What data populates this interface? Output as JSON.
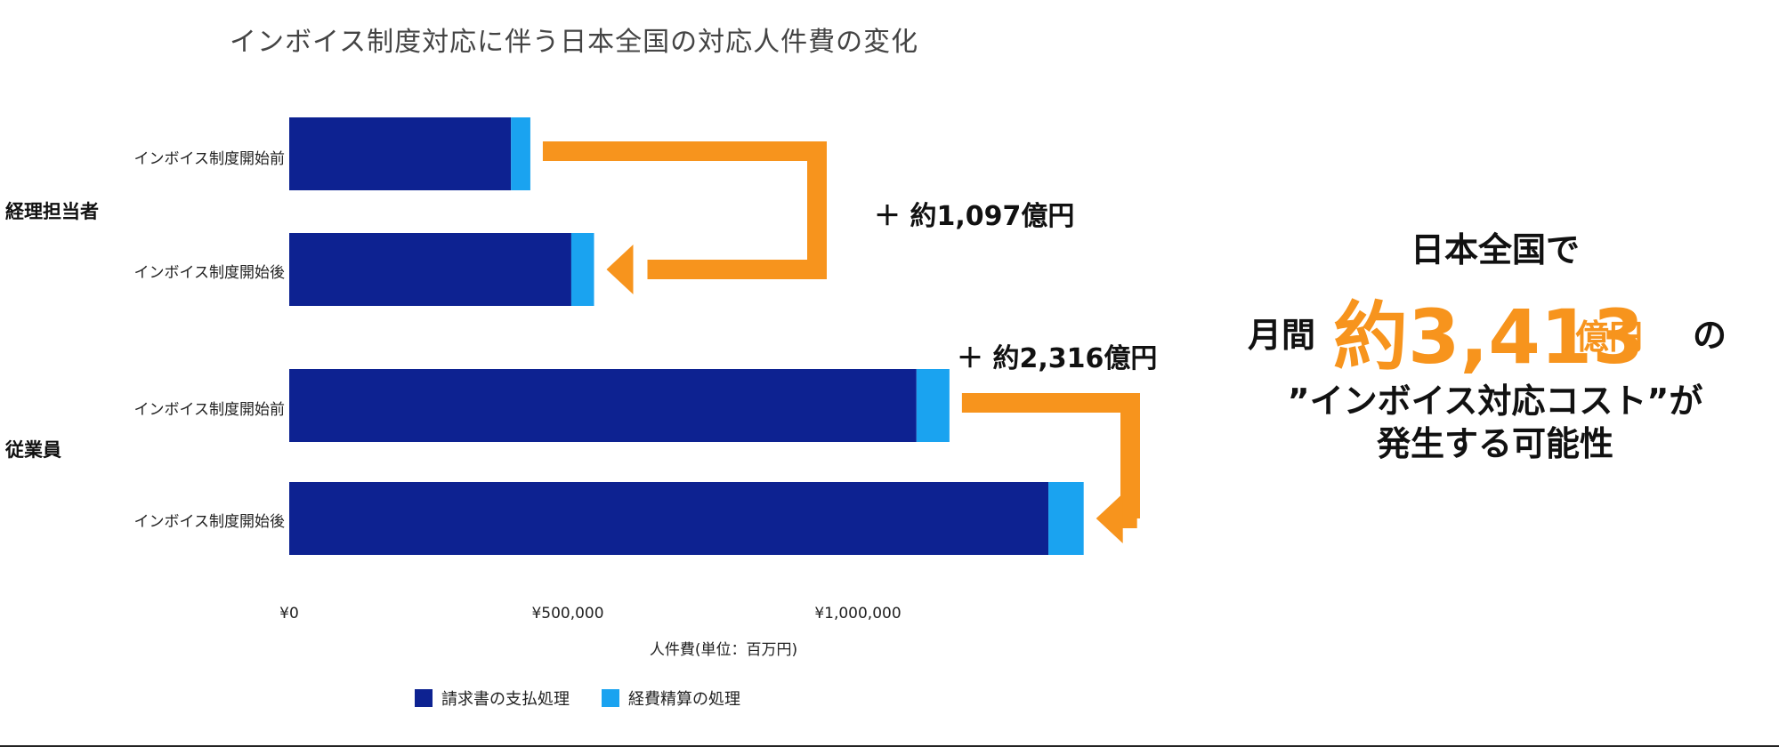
{
  "chart_data": {
    "type": "bar",
    "orientation": "horizontal",
    "stacked": true,
    "title": "インボイス制度対応に伴う日本全国の対応人件費の変化",
    "xlabel": "人件費(単位：百万円)",
    "xlim": [
      0,
      1400000
    ],
    "xticks": [
      {
        "value": 0,
        "label": "¥0"
      },
      {
        "value": 500000,
        "label": "¥500,000"
      },
      {
        "value": 1000000,
        "label": "¥1,000,000"
      }
    ],
    "groups": [
      {
        "name": "経理担当者",
        "categories": [
          "インボイス制度開始前",
          "インボイス制度開始後"
        ]
      },
      {
        "name": "従業員",
        "categories": [
          "インボイス制度開始前",
          "インボイス制度開始後"
        ]
      }
    ],
    "series": [
      {
        "name": "請求書の支払処理",
        "color": "#0d2291",
        "values": [
          390000,
          496000,
          1103000,
          1335000
        ]
      },
      {
        "name": "経費精算の処理",
        "color": "#1aa3f0",
        "values": [
          34000,
          40000,
          58000,
          62000
        ]
      }
    ],
    "legend": "bottom",
    "grid": false,
    "annotations": [
      {
        "text": "＋ 約1,097億円",
        "from_bar": 0,
        "to_bar": 1
      },
      {
        "text": "＋ 約2,316億円",
        "from_bar": 2,
        "to_bar": 3
      }
    ],
    "arrow_color": "#f7941d"
  },
  "callout": {
    "line1": "日本全国で",
    "prefix": "月間",
    "amount": "約3,413",
    "unit": "億円",
    "suffix": "の",
    "line3": "”インボイス対応コスト”が",
    "line4": "発生する可能性",
    "accent": "#f7941d"
  }
}
